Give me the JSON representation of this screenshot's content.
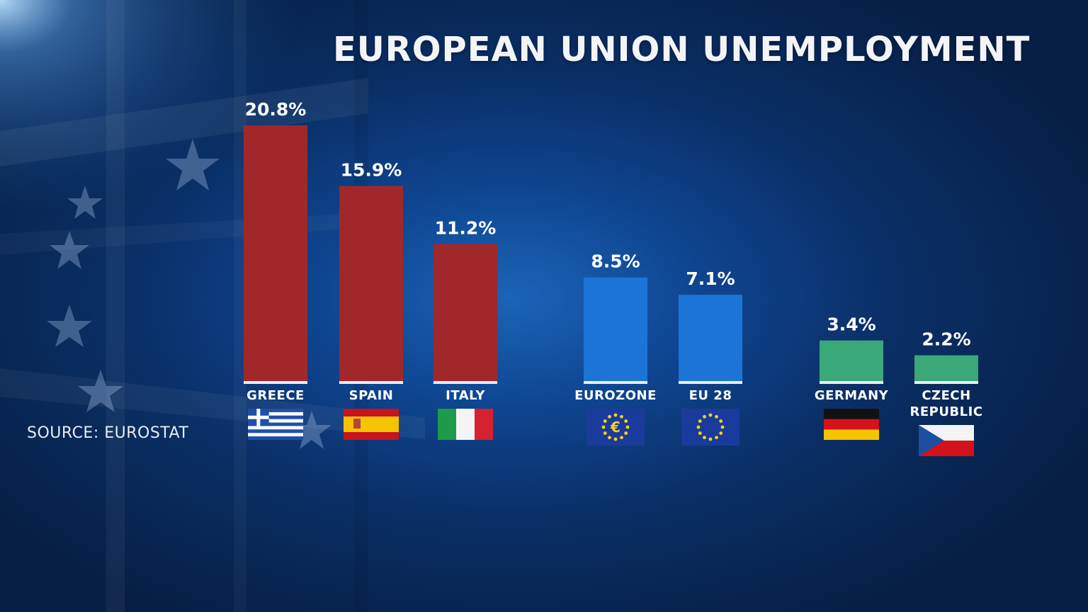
{
  "title": "EUROPEAN UNION UNEMPLOYMENT",
  "source": "SOURCE: EUROSTAT",
  "colors": {
    "high": "#a0282b",
    "average": "#1c74d6",
    "low": "#3aa877",
    "background": "#0a2f66"
  },
  "chart_data": {
    "type": "bar",
    "categories": [
      "GREECE",
      "SPAIN",
      "ITALY",
      "EUROZONE",
      "EU 28",
      "GERMANY",
      "CZECH REPUBLIC"
    ],
    "values": [
      20.8,
      15.9,
      11.2,
      8.5,
      7.1,
      3.4,
      2.2
    ],
    "value_labels": [
      "20.8%",
      "15.9%",
      "11.2%",
      "8.5%",
      "7.1%",
      "3.4%",
      "2.2%"
    ],
    "label_lines": [
      [
        "GREECE"
      ],
      [
        "SPAIN"
      ],
      [
        "ITALY"
      ],
      [
        "EUROZONE"
      ],
      [
        "EU 28"
      ],
      [
        "GERMANY"
      ],
      [
        "CZECH",
        "REPUBLIC"
      ]
    ],
    "groups": [
      "high",
      "high",
      "high",
      "average",
      "average",
      "low",
      "low"
    ],
    "flags": [
      "greece-flag",
      "spain-flag",
      "italy-flag",
      "eu-flag-euro",
      "eu-flag",
      "germany-flag",
      "czech-flag"
    ],
    "unit": "%",
    "title": "EUROPEAN UNION UNEMPLOYMENT",
    "xlabel": "",
    "ylabel": "",
    "grid": false,
    "legend": "none"
  }
}
